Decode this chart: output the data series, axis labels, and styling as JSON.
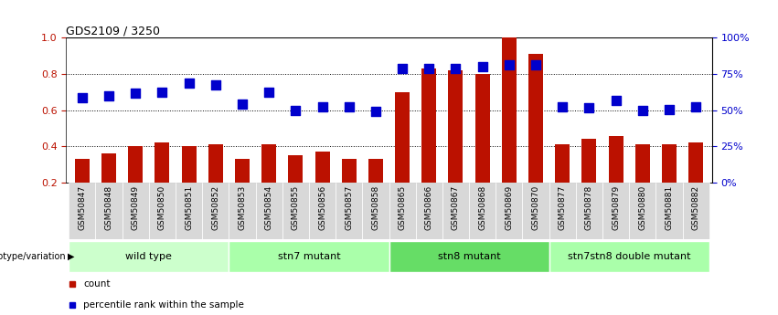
{
  "title": "GDS2109 / 3250",
  "samples": [
    "GSM50847",
    "GSM50848",
    "GSM50849",
    "GSM50850",
    "GSM50851",
    "GSM50852",
    "GSM50853",
    "GSM50854",
    "GSM50855",
    "GSM50856",
    "GSM50857",
    "GSM50858",
    "GSM50865",
    "GSM50866",
    "GSM50867",
    "GSM50868",
    "GSM50869",
    "GSM50870",
    "GSM50877",
    "GSM50878",
    "GSM50879",
    "GSM50880",
    "GSM50881",
    "GSM50882"
  ],
  "count": [
    0.33,
    0.36,
    0.4,
    0.42,
    0.4,
    0.41,
    0.33,
    0.41,
    0.35,
    0.37,
    0.33,
    0.33,
    0.7,
    0.83,
    0.82,
    0.8,
    1.0,
    0.91,
    0.41,
    0.44,
    0.46,
    0.41,
    0.41,
    0.42
  ],
  "percentile": [
    58.5,
    60.0,
    61.5,
    62.5,
    68.5,
    67.5,
    54.5,
    62.5,
    50.0,
    52.5,
    52.5,
    49.0,
    79.0,
    79.0,
    79.0,
    80.0,
    81.5,
    81.5,
    52.5,
    52.0,
    56.5,
    50.0,
    50.5,
    52.5
  ],
  "groups": [
    {
      "label": "wild type",
      "start": 0,
      "end": 6,
      "color": "#ccffcc"
    },
    {
      "label": "stn7 mutant",
      "start": 6,
      "end": 12,
      "color": "#aaffaa"
    },
    {
      "label": "stn8 mutant",
      "start": 12,
      "end": 18,
      "color": "#66dd66"
    },
    {
      "label": "stn7stn8 double mutant",
      "start": 18,
      "end": 24,
      "color": "#aaffaa"
    }
  ],
  "bar_color": "#bb1100",
  "dot_color": "#0000cc",
  "ylim_left": [
    0.2,
    1.0
  ],
  "ylim_right": [
    0,
    100
  ],
  "y_ticks_left": [
    0.2,
    0.4,
    0.6,
    0.8,
    1.0
  ],
  "y_ticks_right": [
    0,
    25,
    50,
    75,
    100
  ],
  "bar_width": 0.55,
  "dot_size": 55,
  "xlabel_fontsize": 6.5,
  "group_label": "genotype/variation",
  "legend_items": [
    {
      "label": "count",
      "color": "#bb1100"
    },
    {
      "label": "percentile rank within the sample",
      "color": "#0000cc"
    }
  ],
  "tick_bg_color": "#d8d8d8",
  "group_separator_color": "white"
}
